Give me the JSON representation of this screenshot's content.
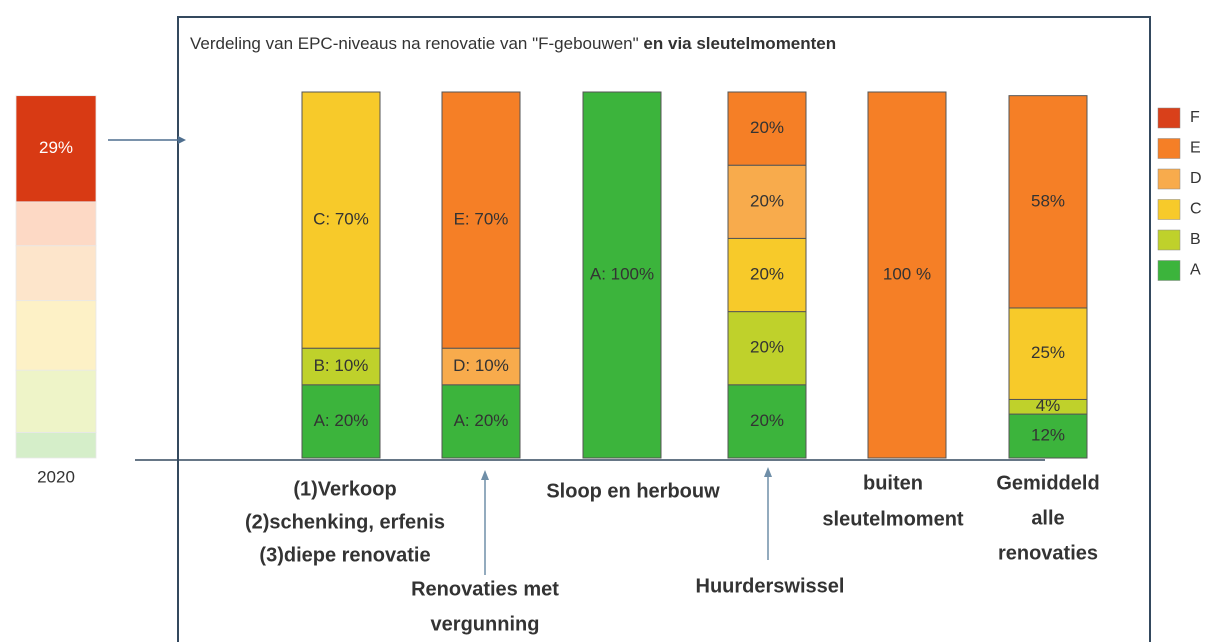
{
  "chart_data": [
    {
      "type": "stacked-bar",
      "title": "Verdeling van EPC-niveaus na renovatie van \"F-gebouwen\"",
      "title_emphasis": "en via sleutelmomenten",
      "categories": [
        [
          "(1)Verkoop",
          "(2)schenking, erfenis",
          "(3)diepe renovatie"
        ],
        [
          "Renovaties met",
          "vergunning"
        ],
        [
          "Sloop en herbouw"
        ],
        [
          "Huurderswissel"
        ],
        [
          "buiten",
          "sleutelmoment"
        ],
        [
          "Gemiddeld",
          "alle",
          "renovaties"
        ]
      ],
      "ylim": [
        0,
        100
      ],
      "series": [
        {
          "name": "A",
          "color": "#3cb43c",
          "values": [
            20,
            20,
            100,
            20,
            null,
            12
          ],
          "value_labels": [
            "A: 20%",
            "A: 20%",
            "A: 100%",
            "20%",
            null,
            "12%"
          ]
        },
        {
          "name": "B",
          "color": "#bfd12b",
          "values": [
            10,
            null,
            null,
            20,
            null,
            4
          ],
          "value_labels": [
            "B: 10%",
            null,
            null,
            "20%",
            null,
            "4%"
          ]
        },
        {
          "name": "C",
          "color": "#f7ca2a",
          "values": [
            70,
            null,
            null,
            20,
            null,
            25
          ],
          "value_labels": [
            "C: 70%",
            null,
            null,
            "20%",
            null,
            "25%"
          ]
        },
        {
          "name": "D",
          "color": "#f8ab4c",
          "values": [
            null,
            10,
            null,
            20,
            null,
            null
          ],
          "value_labels": [
            null,
            "D: 10%",
            null,
            "20%",
            null,
            null
          ]
        },
        {
          "name": "E",
          "color": "#f57f26",
          "values": [
            null,
            70,
            null,
            20,
            100,
            58
          ],
          "value_labels": [
            null,
            "E: 70%",
            null,
            "20%",
            "100 %",
            "58%"
          ]
        },
        {
          "name": "F",
          "color": "#d9401a",
          "values": [
            null,
            null,
            null,
            null,
            null,
            null
          ]
        }
      ],
      "legend": "right"
    },
    {
      "type": "stacked-bar",
      "categories": [
        "2020"
      ],
      "ylim": [
        0,
        100
      ],
      "series": [
        {
          "color": "#d5eec9",
          "values": [
            7
          ]
        },
        {
          "color": "#eef4c8",
          "values": [
            17
          ]
        },
        {
          "color": "#fdf1c6",
          "values": [
            19
          ]
        },
        {
          "color": "#fde5cb",
          "values": [
            15
          ]
        },
        {
          "color": "#fdd9c5",
          "values": [
            12
          ]
        },
        {
          "color": "#d83a14",
          "values": [
            29
          ],
          "value_labels": [
            "29%"
          ]
        }
      ]
    }
  ]
}
